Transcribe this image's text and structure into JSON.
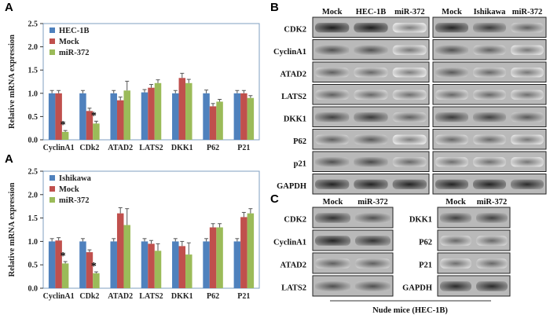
{
  "panel_letters": {
    "a": "A",
    "b": "B",
    "c": "C"
  },
  "colors": {
    "series1": "#4f81bd",
    "series2": "#c0504d",
    "series3": "#9bbb59",
    "error": "#555555",
    "axis": "#7f9fc0"
  },
  "chart_data": [
    {
      "type": "bar",
      "ylabel": "Relative mRNA expression",
      "ylim": [
        0,
        2.5
      ],
      "yticks": [
        "0.0",
        "0.5",
        "1.0",
        "1.5",
        "2.0",
        "2.5"
      ],
      "categories": [
        "CyclinA1",
        "CDk2",
        "ATAD2",
        "LATS2",
        "DKK1",
        "P62",
        "P21"
      ],
      "legend_position": "top-left",
      "series": [
        {
          "name": "HEC-1B",
          "values": [
            1.0,
            1.0,
            1.0,
            1.02,
            1.0,
            1.0,
            1.0
          ],
          "errors": [
            0.06,
            0.06,
            0.06,
            0.06,
            0.06,
            0.07,
            0.06
          ]
        },
        {
          "name": "Mock",
          "values": [
            1.0,
            0.62,
            0.85,
            1.12,
            1.33,
            0.72,
            1.0
          ],
          "errors": [
            0.06,
            0.06,
            0.07,
            0.07,
            0.1,
            0.06,
            0.06
          ]
        },
        {
          "name": "miR-372",
          "values": [
            0.17,
            0.35,
            1.06,
            1.22,
            1.22,
            0.82,
            0.9
          ],
          "errors": [
            0.03,
            0.05,
            0.2,
            0.07,
            0.08,
            0.05,
            0.05
          ]
        }
      ],
      "annotations": [
        {
          "category": "CyclinA1",
          "text": "*"
        },
        {
          "category": "CDk2",
          "text": "*"
        }
      ]
    },
    {
      "type": "bar",
      "ylabel": "Relative mRNA expression",
      "ylim": [
        0,
        2.5
      ],
      "yticks": [
        "0.0",
        "0.5",
        "1.0",
        "1.5",
        "2.0",
        "2.5"
      ],
      "categories": [
        "CyclinA1",
        "CDk2",
        "ATAD2",
        "LATS2",
        "DKK1",
        "P62",
        "P21"
      ],
      "legend_position": "top-left",
      "series": [
        {
          "name": "Ishikawa",
          "values": [
            1.0,
            1.0,
            1.0,
            1.0,
            1.0,
            1.0,
            1.0
          ],
          "errors": [
            0.06,
            0.06,
            0.06,
            0.06,
            0.06,
            0.06,
            0.06
          ]
        },
        {
          "name": "Mock",
          "values": [
            1.02,
            0.77,
            1.6,
            0.95,
            0.9,
            1.3,
            1.52
          ],
          "errors": [
            0.06,
            0.05,
            0.12,
            0.07,
            0.1,
            0.08,
            0.1
          ]
        },
        {
          "name": "miR-372",
          "values": [
            0.53,
            0.32,
            1.35,
            0.8,
            0.72,
            1.3,
            1.6
          ],
          "errors": [
            0.04,
            0.03,
            0.35,
            0.15,
            0.25,
            0.08,
            0.1
          ]
        }
      ],
      "annotations": [
        {
          "category": "CyclinA1",
          "text": "*"
        },
        {
          "category": "CDk2",
          "text": "*"
        }
      ]
    }
  ],
  "blot_b": {
    "left_headers": [
      "Mock",
      "HEC-1B",
      "miR-372"
    ],
    "right_headers": [
      "Mock",
      "Ishikawa",
      "miR-372"
    ],
    "rows": [
      "CDK2",
      "CyclinA1",
      "ATAD2",
      "LATS2",
      "DKK1",
      "P62",
      "p21",
      "GAPDH"
    ]
  },
  "blot_c": {
    "left_headers": [
      "Mock",
      "miR-372"
    ],
    "right_headers": [
      "Mock",
      "miR-372"
    ],
    "left_rows": [
      "CDK2",
      "CyclinA1",
      "ATAD2",
      "LATS2"
    ],
    "right_rows": [
      "DKK1",
      "P62",
      "P21",
      "GAPDH"
    ],
    "caption": "Nude mice (HEC-1B)"
  }
}
